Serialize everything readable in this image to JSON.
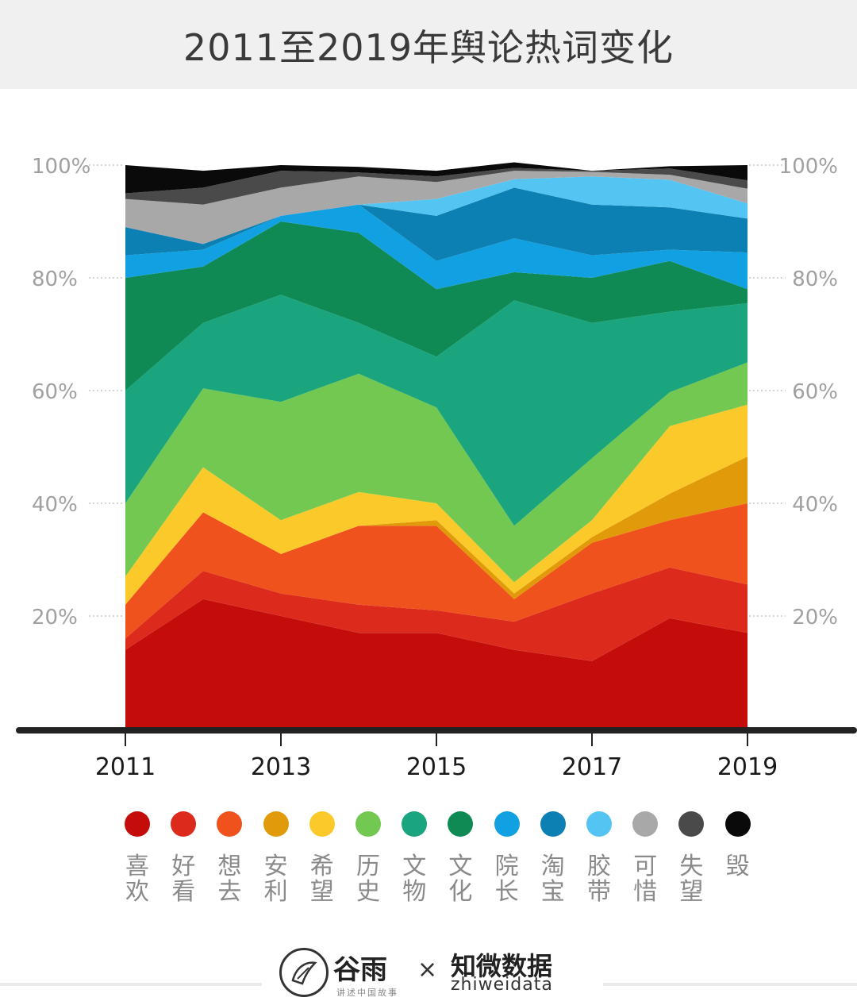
{
  "title": "2011至2019年舆论热词变化",
  "chart_data": {
    "type": "area",
    "stacking": "percent",
    "x": [
      2011,
      2012,
      2013,
      2014,
      2015,
      2016,
      2017,
      2018,
      2019
    ],
    "xticks": [
      "2011",
      "2013",
      "2015",
      "2017",
      "2019"
    ],
    "yticks": [
      "20%",
      "40%",
      "60%",
      "80%",
      "100%"
    ],
    "ylim": [
      0,
      100
    ],
    "series": [
      {
        "name": "喜欢",
        "color": "#c40d0b",
        "values": [
          14,
          23,
          20,
          17,
          17,
          14,
          12,
          19.6,
          17
        ]
      },
      {
        "name": "好看",
        "color": "#dc2a1c",
        "values": [
          2,
          5,
          4,
          5,
          4,
          5,
          12,
          9,
          8.6
        ]
      },
      {
        "name": "想去",
        "color": "#f0521d",
        "values": [
          6,
          10.4,
          7,
          14,
          15,
          4,
          9,
          8.4,
          14.4
        ]
      },
      {
        "name": "安利",
        "color": "#e19a0a",
        "values": [
          0,
          0,
          0,
          0,
          1,
          1,
          1,
          4.7,
          8.3
        ]
      },
      {
        "name": "希望",
        "color": "#fcc92b",
        "values": [
          5,
          8,
          6,
          6,
          3,
          2,
          3,
          12,
          9.2
        ]
      },
      {
        "name": "历史",
        "color": "#72c851",
        "values": [
          13,
          14,
          21,
          21,
          17,
          10,
          11,
          6,
          7.5
        ]
      },
      {
        "name": "文物",
        "color": "#1aa57e",
        "values": [
          20,
          11.6,
          19,
          9,
          9,
          40,
          24,
          14.3,
          10.5
        ]
      },
      {
        "name": "文化",
        "color": "#0f8a55",
        "values": [
          20,
          10,
          13,
          16,
          12,
          5,
          8,
          9,
          2.5
        ]
      },
      {
        "name": "院长",
        "color": "#11a1e3",
        "values": [
          4,
          3,
          1,
          5,
          5,
          6,
          4,
          2,
          6.5
        ]
      },
      {
        "name": "淘宝",
        "color": "#0d80b3",
        "values": [
          5,
          1,
          0,
          0,
          8,
          9,
          9,
          7.5,
          6
        ]
      },
      {
        "name": "胶带",
        "color": "#54c5f3",
        "values": [
          0,
          0,
          0,
          0,
          3,
          1.5,
          5,
          4.9,
          2.7
        ]
      },
      {
        "name": "可惜",
        "color": "#a8a8a8",
        "values": [
          5,
          7,
          5,
          5,
          3,
          1.5,
          0.8,
          0.9,
          2.6
        ]
      },
      {
        "name": "失望",
        "color": "#4a4a4a",
        "values": [
          1,
          3,
          3,
          0.7,
          1,
          0.5,
          0.2,
          1.1,
          1.5
        ]
      },
      {
        "name": "毁",
        "color": "#0a0a0a",
        "values": [
          5,
          3,
          1,
          1,
          1,
          1,
          0,
          0.4,
          2.7
        ]
      }
    ]
  },
  "footer": {
    "brand_a": "谷雨",
    "brand_a_sub": "讲述中国故事",
    "times": "×",
    "brand_b": "知微数据",
    "brand_b_sub": "zhiweidata"
  }
}
